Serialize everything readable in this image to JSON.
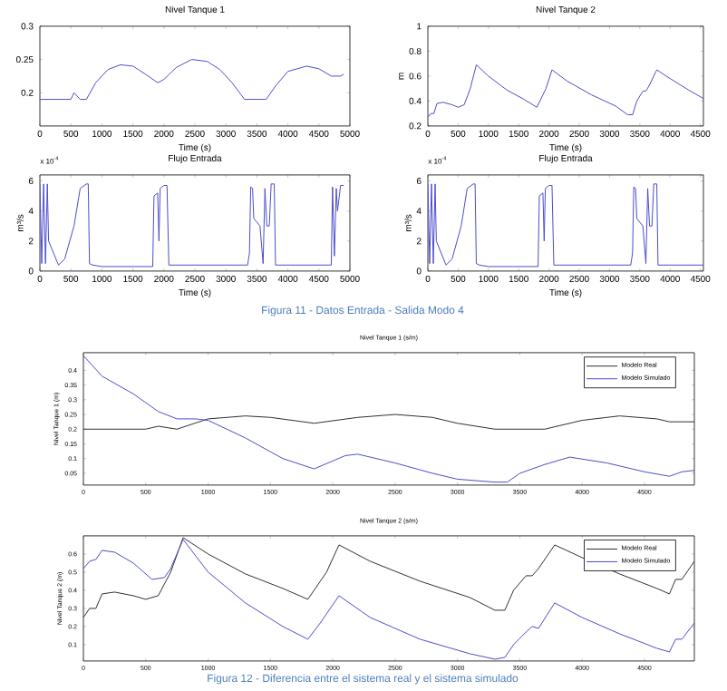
{
  "chart_data": [
    {
      "type": "line",
      "title": "Nivel Tanque 1",
      "xlabel": "Time (s)",
      "xlim": [
        0,
        5000
      ],
      "xticks": [
        0,
        500,
        1000,
        1500,
        2000,
        2500,
        3000,
        3500,
        4000,
        4500,
        5000
      ],
      "ylim": [
        0.15,
        0.3
      ],
      "yticks": [
        0.2,
        0.25,
        0.3
      ],
      "series": [
        {
          "color": "#4b4bd0",
          "x": [
            0,
            500,
            550,
            650,
            750,
            900,
            1100,
            1300,
            1500,
            1700,
            1900,
            2000,
            2200,
            2450,
            2700,
            2900,
            3100,
            3300,
            3650,
            3800,
            4000,
            4300,
            4500,
            4700,
            4850,
            4900
          ],
          "values": [
            0.19,
            0.19,
            0.2,
            0.19,
            0.19,
            0.215,
            0.235,
            0.242,
            0.24,
            0.228,
            0.215,
            0.22,
            0.238,
            0.25,
            0.247,
            0.235,
            0.215,
            0.19,
            0.19,
            0.21,
            0.232,
            0.24,
            0.236,
            0.225,
            0.225,
            0.228
          ]
        }
      ]
    },
    {
      "type": "line",
      "title": "Flujo Entrada",
      "xlabel": "Time (s)",
      "ylabel": "m³/s",
      "annotations": [
        "x 10$^{-4}$"
      ],
      "xlim": [
        0,
        5000
      ],
      "xticks": [
        0,
        500,
        1000,
        1500,
        2000,
        2500,
        3000,
        3500,
        4000,
        4500,
        5000
      ],
      "ylim": [
        0,
        6.4
      ],
      "yticks": [
        0,
        2,
        4,
        6
      ],
      "series": [
        {
          "color": "#4b4bd0",
          "x": [
            0,
            30,
            60,
            90,
            120,
            140,
            300,
            400,
            550,
            650,
            750,
            780,
            800,
            850,
            1000,
            1820,
            1840,
            1900,
            1920,
            1940,
            2000,
            2050,
            2080,
            3350,
            3380,
            3400,
            3430,
            3450,
            3550,
            3600,
            3630,
            3660,
            3700,
            3730,
            3780,
            3800,
            4700,
            4720,
            4750,
            4780,
            4800,
            4850,
            4900
          ],
          "values": [
            5.8,
            0.5,
            5.8,
            0.5,
            5.8,
            2,
            0.4,
            0.8,
            3,
            5.5,
            5.8,
            5.8,
            0.5,
            0.4,
            0.3,
            0.3,
            5,
            5.2,
            2,
            5.5,
            5.7,
            5.7,
            0.4,
            0.4,
            1.2,
            5.6,
            5.5,
            3.5,
            3,
            0.5,
            5.5,
            3,
            3,
            5.8,
            5.8,
            0.4,
            0.4,
            5.6,
            1,
            5.5,
            4,
            5.7,
            5.7
          ]
        }
      ]
    },
    {
      "type": "line",
      "title": "Nivel Tanque 2",
      "xlabel": "Time (s)",
      "ylabel": "m",
      "xlim": [
        0,
        4550
      ],
      "xticks": [
        0,
        500,
        1000,
        1500,
        2000,
        2500,
        3000,
        3500,
        4000,
        4500
      ],
      "ylim": [
        0.2,
        1
      ],
      "yticks": [
        0.2,
        0.4,
        0.6,
        0.8,
        1
      ],
      "series": [
        {
          "color": "#4b4bd0",
          "x": [
            0,
            50,
            100,
            150,
            250,
            400,
            500,
            600,
            700,
            800,
            1000,
            1300,
            1600,
            1800,
            1900,
            1950,
            2050,
            2300,
            2700,
            3100,
            3300,
            3380,
            3450,
            3550,
            3600,
            3650,
            3780,
            4000,
            4300,
            4550
          ],
          "values": [
            0.27,
            0.3,
            0.3,
            0.38,
            0.39,
            0.37,
            0.35,
            0.37,
            0.5,
            0.69,
            0.6,
            0.49,
            0.41,
            0.35,
            0.45,
            0.5,
            0.65,
            0.56,
            0.45,
            0.36,
            0.29,
            0.29,
            0.4,
            0.48,
            0.48,
            0.52,
            0.65,
            0.58,
            0.49,
            0.42
          ]
        }
      ]
    },
    {
      "type": "line",
      "title": "Flujo Entrada",
      "xlabel": "Time (s)",
      "ylabel": "m³/s",
      "annotations": [
        "x 10$^{-4}$",
        "Figura 11 - Datos Entrada - Salida Modo 4"
      ],
      "xlim": [
        0,
        4550
      ],
      "xticks": [
        0,
        500,
        1000,
        1500,
        2000,
        2500,
        3000,
        3500,
        4000,
        4500
      ],
      "ylim": [
        0,
        6.4
      ],
      "yticks": [
        0,
        2,
        4,
        6
      ],
      "series": [
        {
          "color": "#4b4bd0",
          "x": [
            0,
            30,
            60,
            90,
            120,
            140,
            300,
            400,
            550,
            650,
            750,
            780,
            800,
            850,
            1000,
            1820,
            1840,
            1900,
            1920,
            1940,
            2000,
            2050,
            2080,
            3350,
            3380,
            3400,
            3430,
            3450,
            3550,
            3600,
            3630,
            3660,
            3700,
            3730,
            3780,
            3800,
            4550
          ],
          "values": [
            5.8,
            0.5,
            5.8,
            0.5,
            5.8,
            2,
            0.4,
            0.8,
            3,
            5.5,
            5.8,
            5.8,
            0.5,
            0.4,
            0.3,
            0.3,
            5,
            5.2,
            2,
            5.5,
            5.7,
            5.7,
            0.4,
            0.4,
            1.2,
            5.6,
            5.5,
            3.5,
            3,
            0.5,
            5.5,
            3,
            3,
            5.8,
            5.8,
            0.4,
            0.4
          ]
        }
      ]
    },
    {
      "type": "line",
      "title": "Nivel Tanque 1  (s/m)",
      "ylabel": "Nivel Tanque 1 (m)",
      "legend": "top right",
      "xlim": [
        0,
        4900
      ],
      "xticks": [
        0,
        500,
        1000,
        1500,
        2000,
        2500,
        3000,
        3500,
        4000,
        4500
      ],
      "ylim": [
        0.01,
        0.46
      ],
      "yticks": [
        0.05,
        0.1,
        0.15,
        0.2,
        0.25,
        0.3,
        0.35,
        0.4
      ],
      "series": [
        {
          "name": "Modelo Real",
          "color": "#303030",
          "x": [
            0,
            500,
            600,
            750,
            1000,
            1300,
            1500,
            1850,
            2200,
            2500,
            2800,
            3000,
            3300,
            3700,
            4000,
            4300,
            4600,
            4700,
            4900
          ],
          "values": [
            0.2,
            0.2,
            0.21,
            0.2,
            0.235,
            0.245,
            0.24,
            0.22,
            0.24,
            0.25,
            0.24,
            0.22,
            0.2,
            0.2,
            0.23,
            0.245,
            0.235,
            0.225,
            0.225
          ]
        },
        {
          "name": "Modelo Simulado",
          "color": "#4b4bd0",
          "x": [
            0,
            150,
            400,
            600,
            750,
            900,
            1000,
            1300,
            1600,
            1850,
            2100,
            2200,
            2500,
            2800,
            3000,
            3300,
            3400,
            3500,
            3700,
            3900,
            4200,
            4500,
            4700,
            4800,
            4900
          ],
          "values": [
            0.45,
            0.38,
            0.32,
            0.26,
            0.235,
            0.235,
            0.23,
            0.17,
            0.1,
            0.065,
            0.11,
            0.115,
            0.085,
            0.05,
            0.03,
            0.02,
            0.02,
            0.05,
            0.08,
            0.105,
            0.085,
            0.055,
            0.04,
            0.055,
            0.06
          ]
        }
      ]
    },
    {
      "type": "line",
      "title": "Nivel Tanque 2  (s/m)",
      "ylabel": "Nivel Tanque 2 (m)",
      "legend": "top right",
      "annotations": [
        "Figura 12 - Diferencia entre el sistema real y el sistema simulado"
      ],
      "xlim": [
        0,
        4900
      ],
      "xticks": [
        0,
        500,
        1000,
        1500,
        2000,
        2500,
        3000,
        3500,
        4000,
        4500
      ],
      "ylim": [
        0.01,
        0.7
      ],
      "yticks": [
        0.1,
        0.2,
        0.3,
        0.4,
        0.5,
        0.6
      ],
      "series": [
        {
          "name": "Modelo Real",
          "color": "#303030",
          "x": [
            0,
            50,
            100,
            150,
            250,
            400,
            500,
            600,
            700,
            800,
            1000,
            1300,
            1600,
            1800,
            1900,
            1950,
            2050,
            2300,
            2700,
            3100,
            3300,
            3380,
            3450,
            3550,
            3600,
            3650,
            3780,
            4000,
            4300,
            4600,
            4700,
            4750,
            4800,
            4900
          ],
          "values": [
            0.25,
            0.3,
            0.3,
            0.38,
            0.39,
            0.37,
            0.35,
            0.37,
            0.5,
            0.69,
            0.6,
            0.49,
            0.41,
            0.35,
            0.45,
            0.5,
            0.65,
            0.56,
            0.45,
            0.36,
            0.29,
            0.29,
            0.4,
            0.48,
            0.48,
            0.52,
            0.65,
            0.58,
            0.49,
            0.41,
            0.38,
            0.46,
            0.46,
            0.56
          ]
        },
        {
          "name": "Modelo Simulado",
          "color": "#4b4bd0",
          "x": [
            0,
            50,
            100,
            150,
            250,
            400,
            550,
            650,
            700,
            800,
            1000,
            1300,
            1600,
            1800,
            1900,
            1950,
            2050,
            2300,
            2700,
            3100,
            3300,
            3380,
            3450,
            3550,
            3600,
            3650,
            3780,
            4000,
            4300,
            4600,
            4700,
            4750,
            4800,
            4900
          ],
          "values": [
            0.52,
            0.56,
            0.57,
            0.62,
            0.61,
            0.55,
            0.46,
            0.47,
            0.52,
            0.68,
            0.5,
            0.33,
            0.2,
            0.13,
            0.22,
            0.27,
            0.37,
            0.25,
            0.13,
            0.05,
            0.02,
            0.03,
            0.1,
            0.17,
            0.2,
            0.19,
            0.33,
            0.25,
            0.16,
            0.08,
            0.06,
            0.13,
            0.13,
            0.22
          ]
        }
      ]
    }
  ]
}
